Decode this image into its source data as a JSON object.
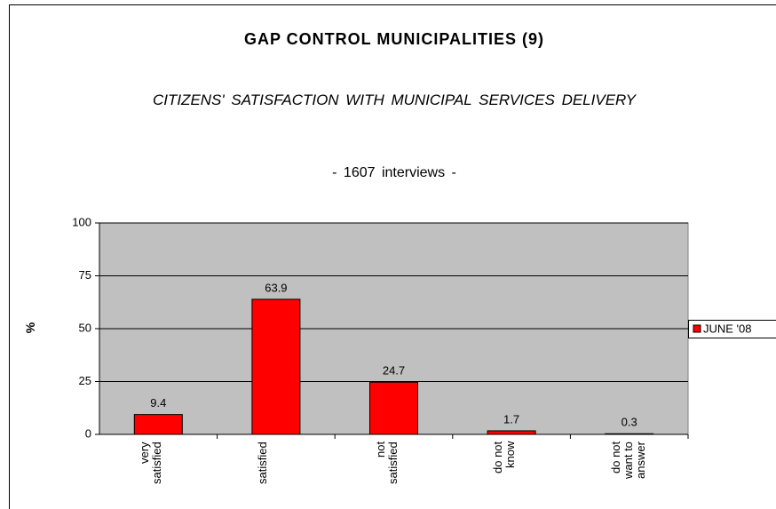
{
  "chart_data": {
    "type": "bar",
    "title": "GAP CONTROL MUNICIPALITIES (9)",
    "subtitle": "CITIZENS' SATISFACTION WITH MUNICIPAL SERVICES DELIVERY",
    "note": "- 1607 interviews -",
    "y_label": "%",
    "categories": [
      "very satisfied",
      "satisfied",
      "not satisfied",
      "do not know",
      "do not want to answer"
    ],
    "series": [
      {
        "name": "JUNE '08",
        "color": "#ff0000",
        "values": [
          9.4,
          63.9,
          24.7,
          1.7,
          0.3
        ]
      }
    ],
    "ylim": [
      0,
      100
    ],
    "yticks": [
      0,
      25,
      50,
      75,
      100
    ],
    "grid": true,
    "legend": "right",
    "plot_background": "#c0c0c0"
  }
}
